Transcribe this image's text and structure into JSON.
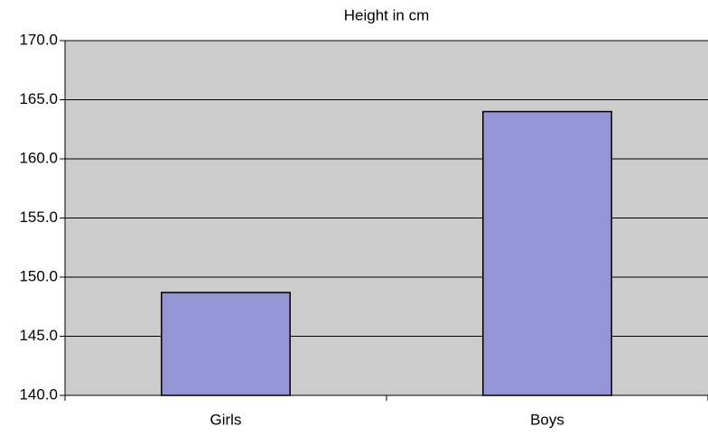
{
  "chart_data": {
    "type": "bar",
    "title": "Height in cm",
    "categories": [
      "Girls",
      "Boys"
    ],
    "values": [
      148.7,
      164.0
    ],
    "color": "#9595d5",
    "ylim": [
      140,
      170
    ],
    "yticks": [
      {
        "value": 140,
        "label": "140.0"
      },
      {
        "value": 145,
        "label": "145.0"
      },
      {
        "value": 150,
        "label": "150.0"
      },
      {
        "value": 155,
        "label": "155.0"
      },
      {
        "value": 160,
        "label": "160.0"
      },
      {
        "value": 165,
        "label": "165.0"
      },
      {
        "value": 170,
        "label": "170.0"
      }
    ],
    "grid": true
  }
}
